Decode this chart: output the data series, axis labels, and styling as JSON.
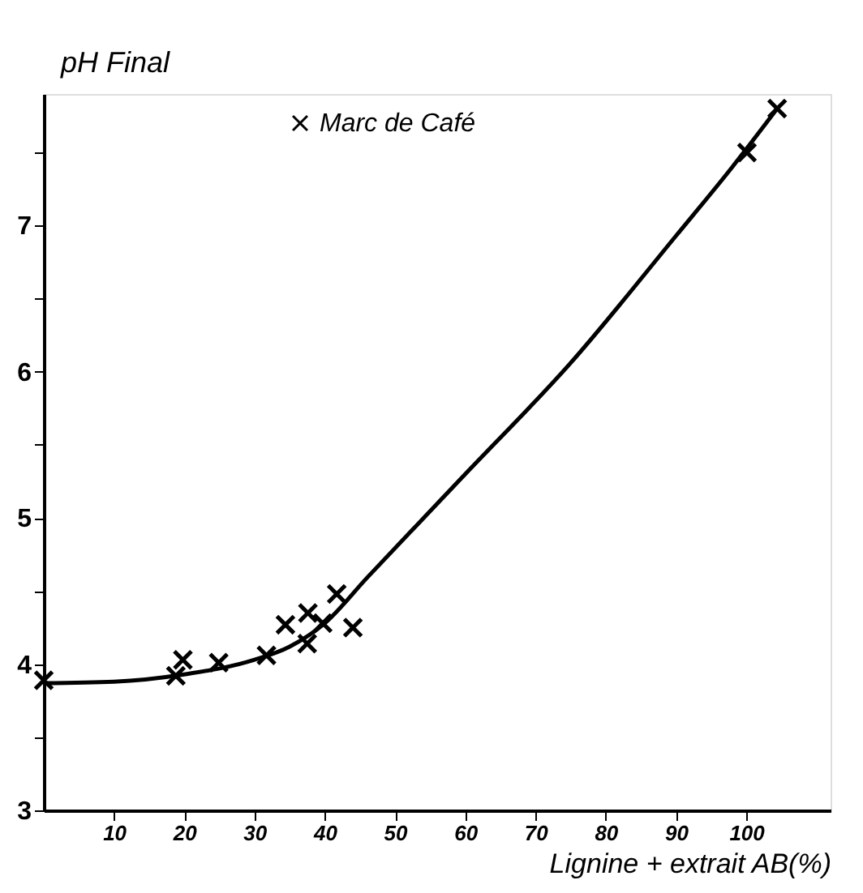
{
  "chart_data": {
    "type": "scatter",
    "xlabel": "Lignine + extrait AB(%)",
    "ylabel": "pH Final",
    "xlim": [
      0,
      112
    ],
    "ylim": [
      3,
      7.9
    ],
    "xticks": [
      10,
      20,
      30,
      40,
      50,
      60,
      70,
      80,
      90,
      100
    ],
    "yticks": [
      3,
      {
        "value": 3.5,
        "label": null
      },
      4,
      {
        "value": 4.5,
        "label": null
      },
      5,
      {
        "value": 5.5,
        "label": null
      },
      6,
      {
        "value": 6.5,
        "label": null
      },
      7,
      {
        "value": 7.5,
        "label": null
      }
    ],
    "grid": false,
    "legend": "top",
    "series": [
      {
        "type": "line",
        "color": "#000000",
        "line_style": "solid",
        "x": [
          0,
          10,
          20,
          30,
          35,
          40,
          46,
          60,
          75,
          90,
          98,
          104.4
        ],
        "values": [
          3.87,
          3.88,
          3.93,
          4.03,
          4.12,
          4.28,
          4.59,
          5.3,
          6.06,
          6.93,
          7.4,
          7.8
        ]
      },
      {
        "name": "Marc de Café",
        "marker": "cross",
        "color": "#000000",
        "x": [
          0,
          18.8,
          19.8,
          24.9,
          31.7,
          34.4,
          37.5,
          37.6,
          39.7,
          41.7,
          44,
          100.1,
          104.4
        ],
        "values": [
          3.89,
          3.92,
          4.03,
          4.01,
          4.06,
          4.27,
          4.14,
          4.35,
          4.28,
          4.48,
          4.25,
          7.5,
          7.8
        ]
      }
    ]
  }
}
